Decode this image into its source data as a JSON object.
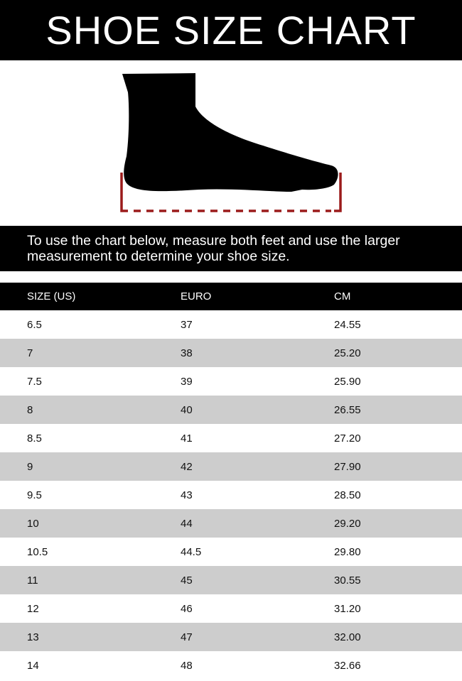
{
  "title": "SHOE SIZE CHART",
  "instructions": "To use the chart below, measure both feet and use the larger measurement to determine your shoe size.",
  "colors": {
    "bracket": "#9b1b1b",
    "row_alt": "#cdcdcd",
    "bar": "#000000"
  },
  "table": {
    "headers": [
      "SIZE (US)",
      "EURO",
      "CM"
    ],
    "rows": [
      [
        "6.5",
        "37",
        "24.55"
      ],
      [
        "7",
        "38",
        "25.20"
      ],
      [
        "7.5",
        "39",
        "25.90"
      ],
      [
        "8",
        "40",
        "26.55"
      ],
      [
        "8.5",
        "41",
        "27.20"
      ],
      [
        "9",
        "42",
        "27.90"
      ],
      [
        "9.5",
        "43",
        "28.50"
      ],
      [
        "10",
        "44",
        "29.20"
      ],
      [
        "10.5",
        "44.5",
        "29.80"
      ],
      [
        "11",
        "45",
        "30.55"
      ],
      [
        "12",
        "46",
        "31.20"
      ],
      [
        "13",
        "47",
        "32.00"
      ],
      [
        "14",
        "48",
        "32.66"
      ]
    ]
  }
}
